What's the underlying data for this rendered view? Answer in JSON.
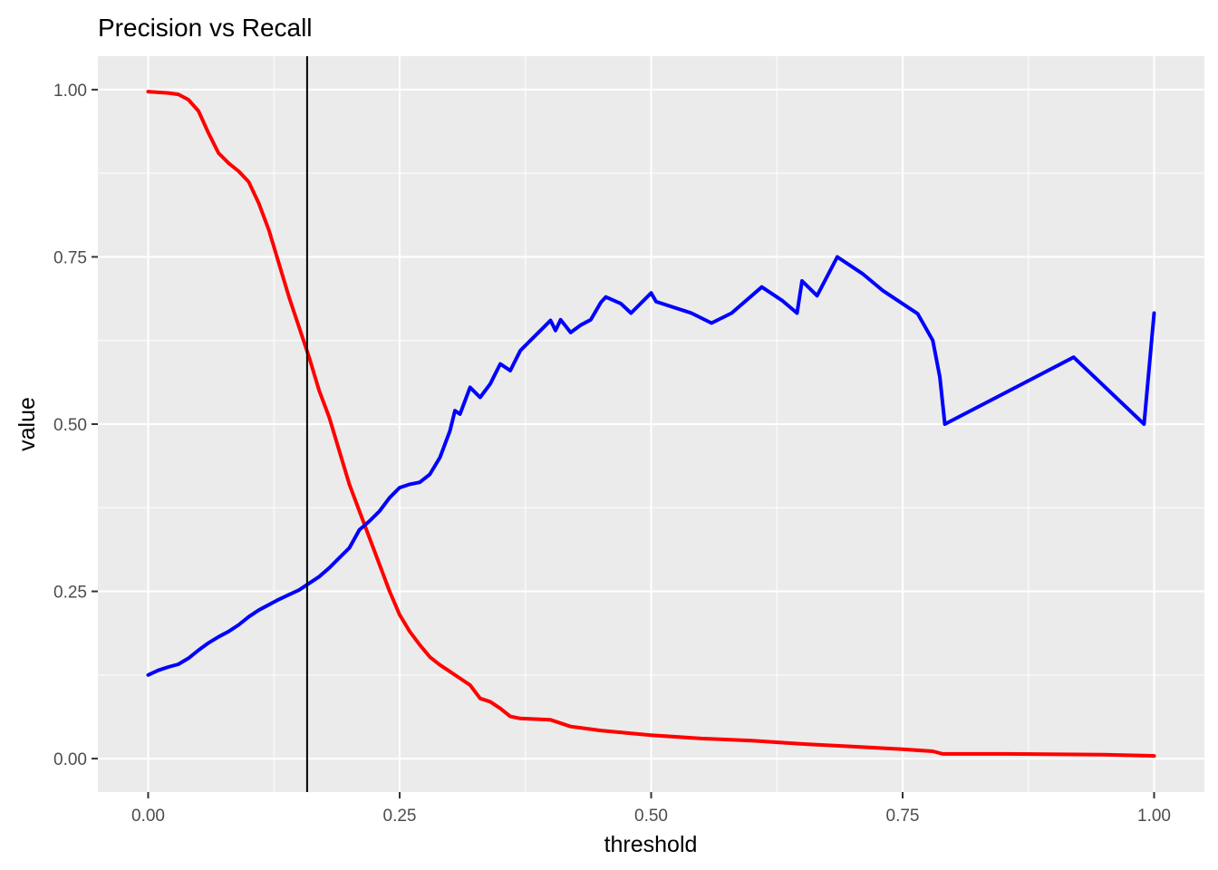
{
  "chart_data": {
    "type": "line",
    "title": "Precision vs Recall",
    "xlabel": "threshold",
    "ylabel": "value",
    "xlim": [
      -0.05,
      1.05
    ],
    "ylim": [
      -0.05,
      1.05
    ],
    "x_ticks": [
      {
        "value": 0,
        "label": "0.00"
      },
      {
        "value": 0.25,
        "label": "0.25"
      },
      {
        "value": 0.5,
        "label": "0.50"
      },
      {
        "value": 0.75,
        "label": "0.75"
      },
      {
        "value": 1,
        "label": "1.00"
      }
    ],
    "y_ticks": [
      {
        "value": 0,
        "label": "0.00"
      },
      {
        "value": 0.25,
        "label": "0.25"
      },
      {
        "value": 0.5,
        "label": "0.50"
      },
      {
        "value": 0.75,
        "label": "0.75"
      },
      {
        "value": 1,
        "label": "1.00"
      }
    ],
    "grid": true,
    "panel_background": "#EBEBEB",
    "grid_color": "#FFFFFF",
    "vline": {
      "x": 0.158,
      "color": "#000000"
    },
    "series": [
      {
        "color": "#FF0000",
        "points": [
          [
            0.0,
            0.997
          ],
          [
            0.01,
            0.996
          ],
          [
            0.02,
            0.995
          ],
          [
            0.03,
            0.993
          ],
          [
            0.04,
            0.985
          ],
          [
            0.05,
            0.968
          ],
          [
            0.06,
            0.935
          ],
          [
            0.07,
            0.905
          ],
          [
            0.08,
            0.89
          ],
          [
            0.09,
            0.878
          ],
          [
            0.1,
            0.862
          ],
          [
            0.11,
            0.83
          ],
          [
            0.12,
            0.79
          ],
          [
            0.13,
            0.74
          ],
          [
            0.14,
            0.69
          ],
          [
            0.15,
            0.645
          ],
          [
            0.16,
            0.6
          ],
          [
            0.17,
            0.55
          ],
          [
            0.18,
            0.51
          ],
          [
            0.19,
            0.46
          ],
          [
            0.2,
            0.41
          ],
          [
            0.21,
            0.37
          ],
          [
            0.22,
            0.33
          ],
          [
            0.23,
            0.29
          ],
          [
            0.24,
            0.25
          ],
          [
            0.25,
            0.215
          ],
          [
            0.26,
            0.19
          ],
          [
            0.27,
            0.17
          ],
          [
            0.28,
            0.152
          ],
          [
            0.29,
            0.14
          ],
          [
            0.3,
            0.13
          ],
          [
            0.31,
            0.12
          ],
          [
            0.32,
            0.11
          ],
          [
            0.33,
            0.09
          ],
          [
            0.34,
            0.085
          ],
          [
            0.35,
            0.075
          ],
          [
            0.36,
            0.063
          ],
          [
            0.37,
            0.06
          ],
          [
            0.4,
            0.058
          ],
          [
            0.42,
            0.048
          ],
          [
            0.45,
            0.042
          ],
          [
            0.5,
            0.035
          ],
          [
            0.55,
            0.03
          ],
          [
            0.6,
            0.027
          ],
          [
            0.65,
            0.022
          ],
          [
            0.7,
            0.018
          ],
          [
            0.75,
            0.014
          ],
          [
            0.78,
            0.011
          ],
          [
            0.79,
            0.007
          ],
          [
            0.85,
            0.007
          ],
          [
            0.95,
            0.006
          ],
          [
            1.0,
            0.004
          ]
        ]
      },
      {
        "color": "#0000FF",
        "points": [
          [
            0.0,
            0.125
          ],
          [
            0.01,
            0.132
          ],
          [
            0.02,
            0.137
          ],
          [
            0.03,
            0.141
          ],
          [
            0.04,
            0.15
          ],
          [
            0.05,
            0.162
          ],
          [
            0.06,
            0.173
          ],
          [
            0.07,
            0.182
          ],
          [
            0.08,
            0.19
          ],
          [
            0.09,
            0.2
          ],
          [
            0.1,
            0.212
          ],
          [
            0.11,
            0.222
          ],
          [
            0.12,
            0.23
          ],
          [
            0.13,
            0.238
          ],
          [
            0.14,
            0.245
          ],
          [
            0.15,
            0.252
          ],
          [
            0.16,
            0.262
          ],
          [
            0.17,
            0.272
          ],
          [
            0.18,
            0.285
          ],
          [
            0.19,
            0.3
          ],
          [
            0.2,
            0.315
          ],
          [
            0.21,
            0.342
          ],
          [
            0.22,
            0.355
          ],
          [
            0.23,
            0.37
          ],
          [
            0.24,
            0.39
          ],
          [
            0.25,
            0.405
          ],
          [
            0.26,
            0.41
          ],
          [
            0.27,
            0.413
          ],
          [
            0.28,
            0.425
          ],
          [
            0.29,
            0.45
          ],
          [
            0.3,
            0.49
          ],
          [
            0.305,
            0.52
          ],
          [
            0.31,
            0.515
          ],
          [
            0.32,
            0.555
          ],
          [
            0.33,
            0.54
          ],
          [
            0.34,
            0.56
          ],
          [
            0.35,
            0.59
          ],
          [
            0.36,
            0.58
          ],
          [
            0.37,
            0.61
          ],
          [
            0.38,
            0.625
          ],
          [
            0.39,
            0.64
          ],
          [
            0.4,
            0.655
          ],
          [
            0.405,
            0.64
          ],
          [
            0.41,
            0.656
          ],
          [
            0.42,
            0.637
          ],
          [
            0.43,
            0.648
          ],
          [
            0.44,
            0.656
          ],
          [
            0.45,
            0.682
          ],
          [
            0.455,
            0.69
          ],
          [
            0.47,
            0.68
          ],
          [
            0.48,
            0.666
          ],
          [
            0.5,
            0.696
          ],
          [
            0.505,
            0.683
          ],
          [
            0.54,
            0.666
          ],
          [
            0.56,
            0.651
          ],
          [
            0.58,
            0.666
          ],
          [
            0.61,
            0.705
          ],
          [
            0.63,
            0.685
          ],
          [
            0.645,
            0.666
          ],
          [
            0.65,
            0.714
          ],
          [
            0.665,
            0.692
          ],
          [
            0.685,
            0.75
          ],
          [
            0.71,
            0.725
          ],
          [
            0.73,
            0.7
          ],
          [
            0.765,
            0.665
          ],
          [
            0.78,
            0.625
          ],
          [
            0.787,
            0.57
          ],
          [
            0.792,
            0.5
          ],
          [
            0.92,
            0.6
          ],
          [
            0.99,
            0.5
          ],
          [
            1.0,
            0.666
          ]
        ]
      }
    ]
  }
}
